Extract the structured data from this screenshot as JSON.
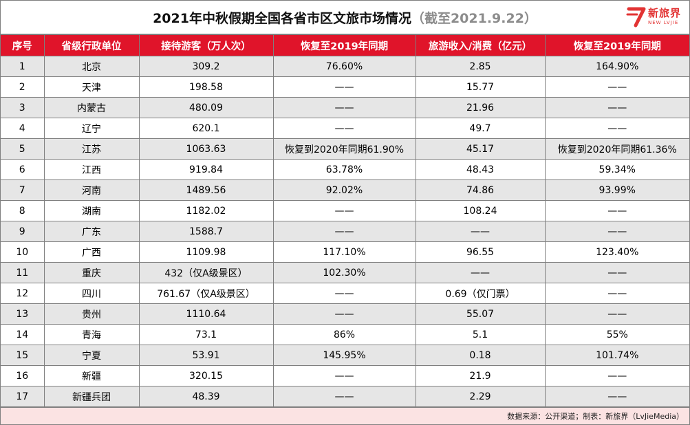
{
  "title": {
    "main": "2021年中秋假期全国各省市区文旅市场情况",
    "sub": "（截至2021.9.22）"
  },
  "logo": {
    "icon": "lvjie-logo-icon",
    "cn": "新旅界",
    "en": "NEW LVJIE",
    "color": "#e23333"
  },
  "table": {
    "headers": [
      "序号",
      "省级行政单位",
      "接待游客（万人次）",
      "恢复至2019年同期",
      "旅游收入/消费（亿元）",
      "恢复至2019年同期"
    ],
    "rows": [
      [
        "1",
        "北京",
        "309.2",
        "76.60%",
        "2.85",
        "164.90%"
      ],
      [
        "2",
        "天津",
        "198.58",
        "——",
        "15.77",
        "——"
      ],
      [
        "3",
        "内蒙古",
        "480.09",
        "——",
        "21.96",
        "——"
      ],
      [
        "4",
        "辽宁",
        "620.1",
        "——",
        "49.7",
        "——"
      ],
      [
        "5",
        "江苏",
        "1063.63",
        "恢复到2020年同期61.90%",
        "45.17",
        "恢复到2020年同期61.36%"
      ],
      [
        "6",
        "江西",
        "919.84",
        "63.78%",
        "48.43",
        "59.34%"
      ],
      [
        "7",
        "河南",
        "1489.56",
        "92.02%",
        "74.86",
        "93.99%"
      ],
      [
        "8",
        "湖南",
        "1182.02",
        "——",
        "108.24",
        "——"
      ],
      [
        "9",
        "广东",
        "1588.7",
        "——",
        "——",
        "——"
      ],
      [
        "10",
        "广西",
        "1109.98",
        "117.10%",
        "96.55",
        "123.40%"
      ],
      [
        "11",
        "重庆",
        "432（仅A级景区）",
        "102.30%",
        "——",
        "——"
      ],
      [
        "12",
        "四川",
        "761.67（仅A级景区）",
        "——",
        "0.69（仅门票）",
        "——"
      ],
      [
        "13",
        "贵州",
        "1110.64",
        "——",
        "55.07",
        "——"
      ],
      [
        "14",
        "青海",
        "73.1",
        "86%",
        "5.1",
        "55%"
      ],
      [
        "15",
        "宁夏",
        "53.91",
        "145.95%",
        "0.18",
        "101.74%"
      ],
      [
        "16",
        "新疆",
        "320.15",
        "——",
        "21.9",
        "——"
      ],
      [
        "17",
        "新疆兵团",
        "48.39",
        "——",
        "2.29",
        "——"
      ]
    ]
  },
  "footer": {
    "source": "数据来源：公开渠道；制表：新旅界（LvJieMedia）"
  },
  "colors": {
    "header_bg": "#e0142a",
    "row_alt_bg": "#e6e6e6",
    "footer_bg": "#fbe3e3"
  }
}
